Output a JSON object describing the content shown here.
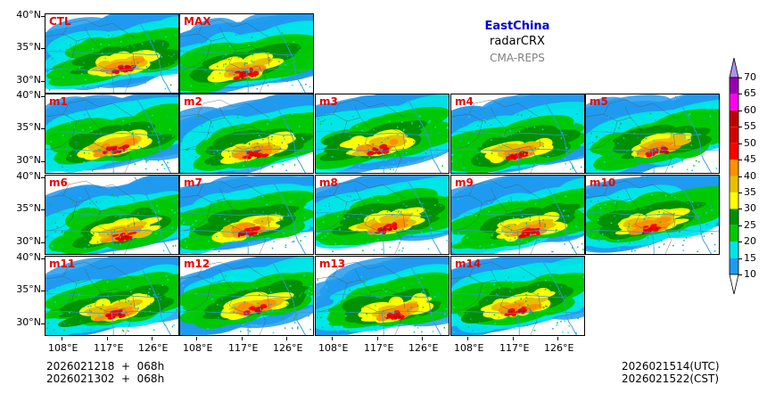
{
  "title": {
    "region": "EastChina",
    "variable": "radarCRX",
    "source": "CMA-REPS"
  },
  "members": [
    "CTL",
    "MAX",
    "m1",
    "m2",
    "m3",
    "m4",
    "m5",
    "m6",
    "m7",
    "m8",
    "m9",
    "m10",
    "m11",
    "m12",
    "m13",
    "m14"
  ],
  "lat_labels": [
    "40°N",
    "35°N",
    "30°N"
  ],
  "lon_labels": [
    "108°E",
    "117°E",
    "126°E"
  ],
  "colorbar": {
    "ticks": [
      "10",
      "15",
      "20",
      "25",
      "30",
      "35",
      "40",
      "45",
      "50",
      "55",
      "60",
      "65",
      "70"
    ],
    "colors": [
      "#1e9bf0",
      "#00e5e5",
      "#00c800",
      "#009000",
      "#ffff00",
      "#e6c000",
      "#ff9000",
      "#ff0000",
      "#d60000",
      "#c00000",
      "#ff00f0",
      "#9600b4",
      "#ad90f0"
    ]
  },
  "footer": {
    "init_utc": "2026021218  +  068h",
    "init_cst": "2026021302  +  068h",
    "valid_utc": "2026021514(UTC)",
    "valid_cst": "2026021522(CST)"
  }
}
